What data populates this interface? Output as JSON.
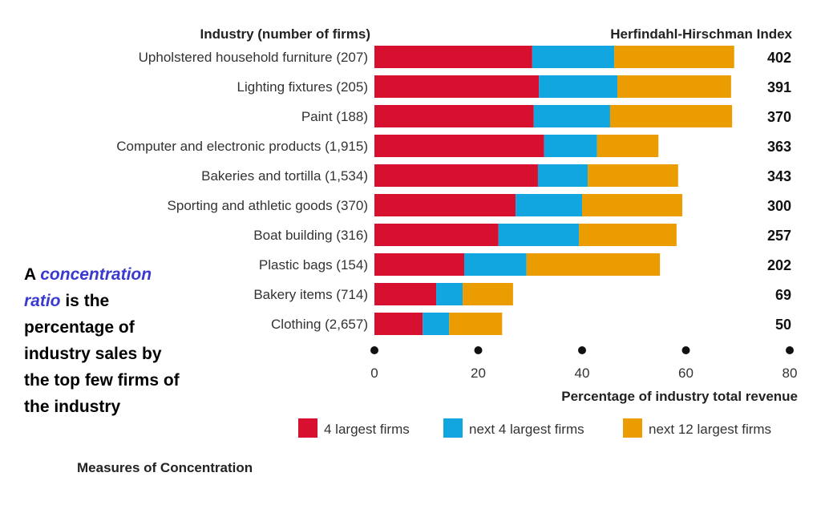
{
  "chart_data": {
    "type": "bar",
    "orientation": "horizontal",
    "stacked": true,
    "title": "Measures of Concentration",
    "left_header": "Industry (number of firms)",
    "right_header": "Herfindahl-Hirschman Index",
    "xlabel": "Percentage of industry total revenue",
    "xlim": [
      0,
      80
    ],
    "xticks": [
      "0",
      "20",
      "40",
      "60",
      "80"
    ],
    "categories": [
      "Upholstered household furniture  (207)",
      "Lighting fixtures  (205)",
      "Paint  (188)",
      "Computer and electronic products  (1,915)",
      "Bakeries and tortilla  (1,534)",
      "Sporting and athletic goods  (370)",
      "Boat building (316)",
      "Plastic bags  (154)",
      "Bakery items (714)",
      "Clothing  (2,657)"
    ],
    "hhi": [
      "402",
      "391",
      "370",
      "363",
      "343",
      "300",
      "257",
      "202",
      "69",
      "50"
    ],
    "series": [
      {
        "name": "4 largest firms",
        "color": "#d8102f",
        "values": [
          30.4,
          31.7,
          30.7,
          32.7,
          31.5,
          27.2,
          23.9,
          17.3,
          11.9,
          9.3
        ]
      },
      {
        "name": "next 4 largest firms",
        "color": "#12a6e0",
        "values": [
          15.8,
          15.1,
          14.7,
          10.2,
          9.6,
          12.8,
          15.5,
          12.0,
          5.1,
          5.1
        ]
      },
      {
        "name": "next 12 largest firms",
        "color": "#eb9c00",
        "values": [
          23.1,
          21.9,
          23.5,
          11.8,
          17.4,
          19.3,
          18.8,
          25.7,
          9.7,
          10.2
        ]
      }
    ]
  },
  "sidebar": {
    "prefix": "A ",
    "term": "concentration ratio",
    "rest": " is the percentage of industry sales by the top few firms of the industry"
  }
}
